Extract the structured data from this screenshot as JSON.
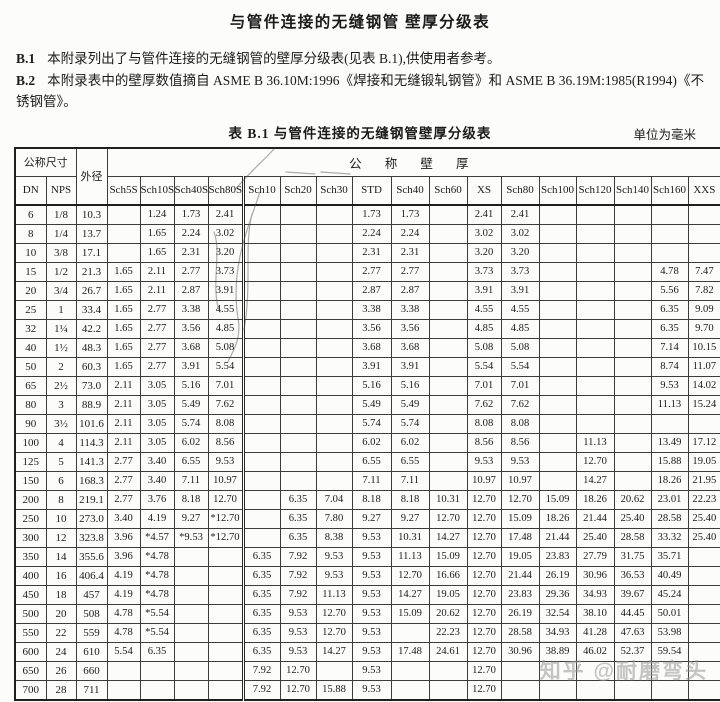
{
  "page": {
    "title": "与管件连接的无缝钢管  壁厚分级表",
    "para_b1_label": "B.1",
    "para_b1_text": "本附录列出了与管件连接的无缝钢管的壁厚分级表(见表 B.1),供使用者参考。",
    "para_b2_label": "B.2",
    "para_b2_text": "本附录表中的壁厚数值摘自 ASME B 36.10M:1996《焊接和无缝锻轧钢管》和 ASME B 36.19M:1985(R1994)《不锈钢管》。",
    "watermark": "知乎 @耐磨弯头"
  },
  "table": {
    "caption": "表 B.1  与管件连接的无缝钢管壁厚分级表",
    "unit_note": "单位为毫米",
    "header": {
      "nominal_size": "公称尺寸",
      "outer_diameter": "外径",
      "nominal_wall_thickness": "公 称 壁 厚",
      "dn": "DN",
      "nps": "NPS",
      "sch_columns": [
        "Sch5S",
        "Sch10S",
        "Sch40S",
        "Sch80S",
        "Sch10",
        "Sch20",
        "Sch30",
        "STD",
        "Sch40",
        "Sch60",
        "XS",
        "Sch80",
        "Sch100",
        "Sch120",
        "Sch140",
        "Sch160",
        "XXS"
      ]
    },
    "rows": [
      {
        "dn": "6",
        "nps": "1/8",
        "od": "10.3",
        "cells": [
          "",
          "1.24",
          "1.73",
          "2.41",
          "",
          "",
          "",
          "1.73",
          "1.73",
          "",
          "2.41",
          "2.41",
          "",
          "",
          "",
          "",
          ""
        ]
      },
      {
        "dn": "8",
        "nps": "1/4",
        "od": "13.7",
        "cells": [
          "",
          "1.65",
          "2.24",
          "3.02",
          "",
          "",
          "",
          "2.24",
          "2.24",
          "",
          "3.02",
          "3.02",
          "",
          "",
          "",
          "",
          ""
        ]
      },
      {
        "dn": "10",
        "nps": "3/8",
        "od": "17.1",
        "cells": [
          "",
          "1.65",
          "2.31",
          "3.20",
          "",
          "",
          "",
          "2.31",
          "2.31",
          "",
          "3.20",
          "3.20",
          "",
          "",
          "",
          "",
          ""
        ]
      },
      {
        "dn": "15",
        "nps": "1/2",
        "od": "21.3",
        "cells": [
          "1.65",
          "2.11",
          "2.77",
          "3.73",
          "",
          "",
          "",
          "2.77",
          "2.77",
          "",
          "3.73",
          "3.73",
          "",
          "",
          "",
          "4.78",
          "7.47"
        ]
      },
      {
        "dn": "20",
        "nps": "3/4",
        "od": "26.7",
        "cells": [
          "1.65",
          "2.11",
          "2.87",
          "3.91",
          "",
          "",
          "",
          "2.87",
          "2.87",
          "",
          "3.91",
          "3.91",
          "",
          "",
          "",
          "5.56",
          "7.82"
        ]
      },
      {
        "dn": "25",
        "nps": "1",
        "od": "33.4",
        "cells": [
          "1.65",
          "2.77",
          "3.38",
          "4.55",
          "",
          "",
          "",
          "3.38",
          "3.38",
          "",
          "4.55",
          "4.55",
          "",
          "",
          "",
          "6.35",
          "9.09"
        ]
      },
      {
        "dn": "32",
        "nps": "1¼",
        "od": "42.2",
        "cells": [
          "1.65",
          "2.77",
          "3.56",
          "4.85",
          "",
          "",
          "",
          "3.56",
          "3.56",
          "",
          "4.85",
          "4.85",
          "",
          "",
          "",
          "6.35",
          "9.70"
        ]
      },
      {
        "dn": "40",
        "nps": "1½",
        "od": "48.3",
        "cells": [
          "1.65",
          "2.77",
          "3.68",
          "5.08",
          "",
          "",
          "",
          "3.68",
          "3.68",
          "",
          "5.08",
          "5.08",
          "",
          "",
          "",
          "7.14",
          "10.15"
        ]
      },
      {
        "dn": "50",
        "nps": "2",
        "od": "60.3",
        "cells": [
          "1.65",
          "2.77",
          "3.91",
          "5.54",
          "",
          "",
          "",
          "3.91",
          "3.91",
          "",
          "5.54",
          "5.54",
          "",
          "",
          "",
          "8.74",
          "11.07"
        ]
      },
      {
        "dn": "65",
        "nps": "2½",
        "od": "73.0",
        "cells": [
          "2.11",
          "3.05",
          "5.16",
          "7.01",
          "",
          "",
          "",
          "5.16",
          "5.16",
          "",
          "7.01",
          "7.01",
          "",
          "",
          "",
          "9.53",
          "14.02"
        ]
      },
      {
        "dn": "80",
        "nps": "3",
        "od": "88.9",
        "cells": [
          "2.11",
          "3.05",
          "5.49",
          "7.62",
          "",
          "",
          "",
          "5.49",
          "5.49",
          "",
          "7.62",
          "7.62",
          "",
          "",
          "",
          "11.13",
          "15.24"
        ]
      },
      {
        "dn": "90",
        "nps": "3½",
        "od": "101.6",
        "cells": [
          "2.11",
          "3.05",
          "5.74",
          "8.08",
          "",
          "",
          "",
          "5.74",
          "5.74",
          "",
          "8.08",
          "8.08",
          "",
          "",
          "",
          "",
          ""
        ]
      },
      {
        "dn": "100",
        "nps": "4",
        "od": "114.3",
        "cells": [
          "2.11",
          "3.05",
          "6.02",
          "8.56",
          "",
          "",
          "",
          "6.02",
          "6.02",
          "",
          "8.56",
          "8.56",
          "",
          "11.13",
          "",
          "13.49",
          "17.12"
        ]
      },
      {
        "dn": "125",
        "nps": "5",
        "od": "141.3",
        "cells": [
          "2.77",
          "3.40",
          "6.55",
          "9.53",
          "",
          "",
          "",
          "6.55",
          "6.55",
          "",
          "9.53",
          "9.53",
          "",
          "12.70",
          "",
          "15.88",
          "19.05"
        ]
      },
      {
        "dn": "150",
        "nps": "6",
        "od": "168.3",
        "cells": [
          "2.77",
          "3.40",
          "7.11",
          "10.97",
          "",
          "",
          "",
          "7.11",
          "7.11",
          "",
          "10.97",
          "10.97",
          "",
          "14.27",
          "",
          "18.26",
          "21.95"
        ]
      },
      {
        "dn": "200",
        "nps": "8",
        "od": "219.1",
        "cells": [
          "2.77",
          "3.76",
          "8.18",
          "12.70",
          "",
          "6.35",
          "7.04",
          "8.18",
          "8.18",
          "10.31",
          "12.70",
          "12.70",
          "15.09",
          "18.26",
          "20.62",
          "23.01",
          "22.23"
        ]
      },
      {
        "dn": "250",
        "nps": "10",
        "od": "273.0",
        "cells": [
          "3.40",
          "4.19",
          "9.27",
          "*12.70",
          "",
          "6.35",
          "7.80",
          "9.27",
          "9.27",
          "12.70",
          "12.70",
          "15.09",
          "18.26",
          "21.44",
          "25.40",
          "28.58",
          "25.40"
        ]
      },
      {
        "dn": "300",
        "nps": "12",
        "od": "323.8",
        "cells": [
          "3.96",
          "*4.57",
          "*9.53",
          "*12.70",
          "",
          "6.35",
          "8.38",
          "9.53",
          "10.31",
          "14.27",
          "12.70",
          "17.48",
          "21.44",
          "25.40",
          "28.58",
          "33.32",
          "25.40"
        ]
      },
      {
        "dn": "350",
        "nps": "14",
        "od": "355.6",
        "cells": [
          "3.96",
          "*4.78",
          "",
          "",
          "6.35",
          "7.92",
          "9.53",
          "9.53",
          "11.13",
          "15.09",
          "12.70",
          "19.05",
          "23.83",
          "27.79",
          "31.75",
          "35.71",
          ""
        ]
      },
      {
        "dn": "400",
        "nps": "16",
        "od": "406.4",
        "cells": [
          "4.19",
          "*4.78",
          "",
          "",
          "6.35",
          "7.92",
          "9.53",
          "9.53",
          "12.70",
          "16.66",
          "12.70",
          "21.44",
          "26.19",
          "30.96",
          "36.53",
          "40.49",
          ""
        ]
      },
      {
        "dn": "450",
        "nps": "18",
        "od": "457",
        "cells": [
          "4.19",
          "*4.78",
          "",
          "",
          "6.35",
          "7.92",
          "11.13",
          "9.53",
          "14.27",
          "19.05",
          "12.70",
          "23.83",
          "29.36",
          "34.93",
          "39.67",
          "45.24",
          ""
        ]
      },
      {
        "dn": "500",
        "nps": "20",
        "od": "508",
        "cells": [
          "4.78",
          "*5.54",
          "",
          "",
          "6.35",
          "9.53",
          "12.70",
          "9.53",
          "15.09",
          "20.62",
          "12.70",
          "26.19",
          "32.54",
          "38.10",
          "44.45",
          "50.01",
          ""
        ]
      },
      {
        "dn": "550",
        "nps": "22",
        "od": "559",
        "cells": [
          "4.78",
          "*5.54",
          "",
          "",
          "6.35",
          "9.53",
          "12.70",
          "9.53",
          "",
          "22.23",
          "12.70",
          "28.58",
          "34.93",
          "41.28",
          "47.63",
          "53.98",
          ""
        ]
      },
      {
        "dn": "600",
        "nps": "24",
        "od": "610",
        "cells": [
          "5.54",
          "6.35",
          "",
          "",
          "6.35",
          "9.53",
          "14.27",
          "9.53",
          "17.48",
          "24.61",
          "12.70",
          "30.96",
          "38.89",
          "46.02",
          "52.37",
          "59.54",
          ""
        ]
      },
      {
        "dn": "650",
        "nps": "26",
        "od": "660",
        "cells": [
          "",
          "",
          "",
          "",
          "7.92",
          "12.70",
          "",
          "9.53",
          "",
          "",
          "12.70",
          "",
          "",
          "",
          "",
          "",
          ""
        ]
      },
      {
        "dn": "700",
        "nps": "28",
        "od": "711",
        "cells": [
          "",
          "",
          "",
          "",
          "7.92",
          "12.70",
          "15.88",
          "9.53",
          "",
          "",
          "12.70",
          "",
          "",
          "",
          "",
          "",
          ""
        ]
      }
    ]
  }
}
